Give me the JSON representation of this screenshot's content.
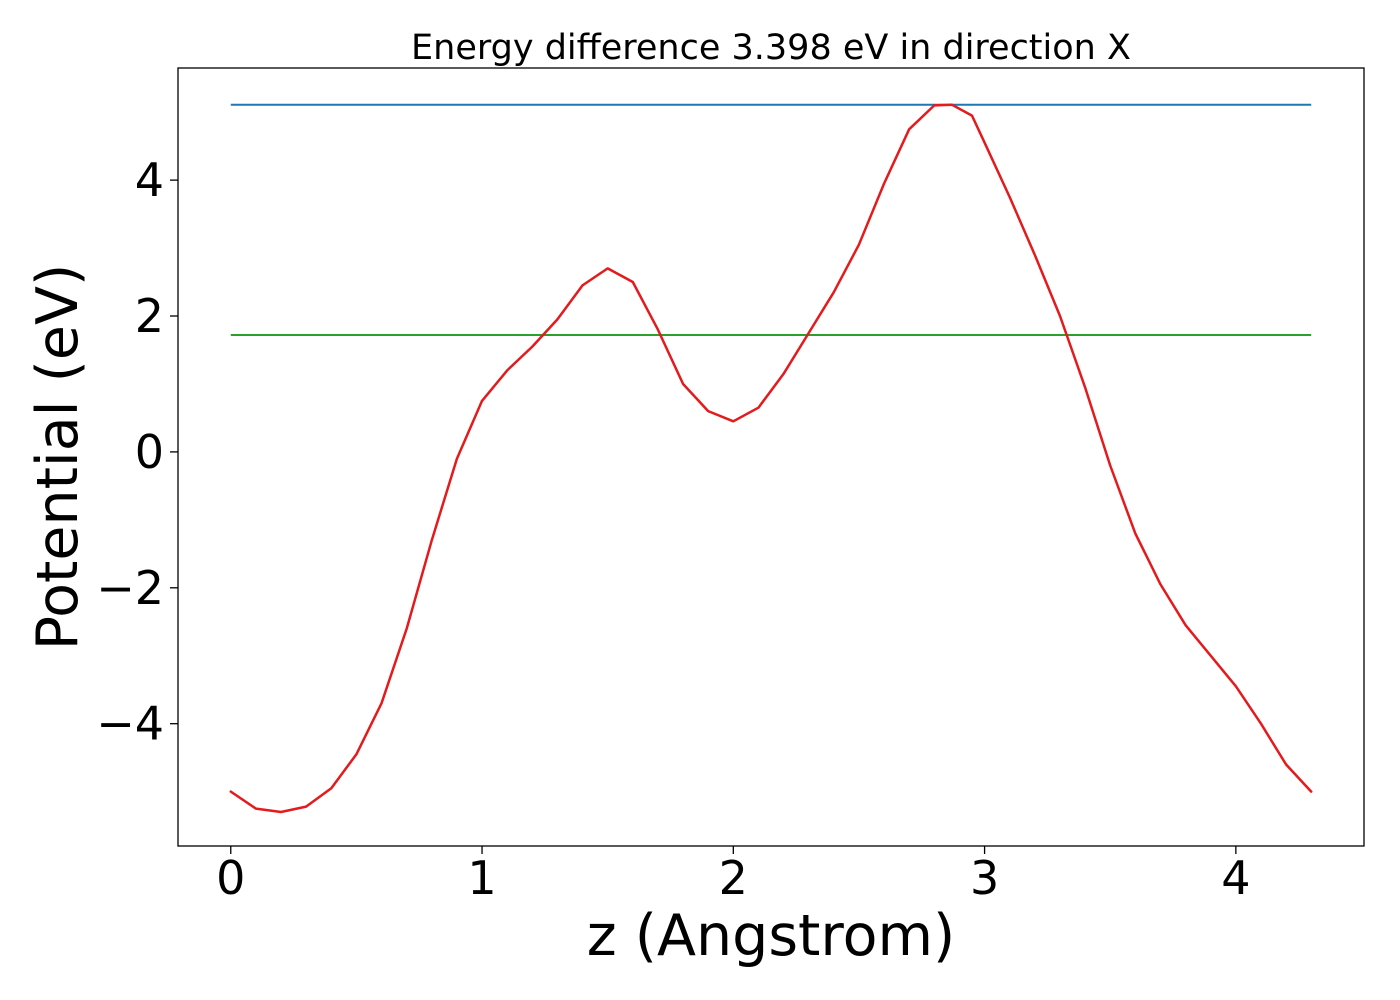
{
  "chart_data": {
    "type": "line",
    "title": "Energy difference 3.398 eV in direction X",
    "xlabel": "z (Angstrom)",
    "ylabel": "Potential (eV)",
    "xlim": [
      -0.21,
      4.51
    ],
    "ylim": [
      -5.8,
      5.65
    ],
    "xticks": [
      {
        "value": 0,
        "label": "0"
      },
      {
        "value": 1,
        "label": "1"
      },
      {
        "value": 2,
        "label": "2"
      },
      {
        "value": 3,
        "label": "3"
      },
      {
        "value": 4,
        "label": "4"
      }
    ],
    "yticks": [
      {
        "value": -4,
        "label": "−4"
      },
      {
        "value": -2,
        "label": "−2"
      },
      {
        "value": 0,
        "label": "0"
      },
      {
        "value": 2,
        "label": "2"
      },
      {
        "value": 4,
        "label": "4"
      }
    ],
    "grid": false,
    "legend": "none",
    "hlines": [
      {
        "y": 5.11,
        "x_range": [
          0,
          4.3
        ],
        "color": "#1f77b4"
      },
      {
        "y": 1.72,
        "x_range": [
          0,
          4.3
        ],
        "color": "#2ca02c"
      }
    ],
    "series": [
      {
        "color": "#e41a1c",
        "x": [
          0,
          0.1,
          0.2,
          0.3,
          0.4,
          0.5,
          0.6,
          0.7,
          0.8,
          0.9,
          1.0,
          1.1,
          1.2,
          1.3,
          1.4,
          1.5,
          1.6,
          1.7,
          1.8,
          1.9,
          2.0,
          2.1,
          2.2,
          2.3,
          2.4,
          2.5,
          2.6,
          2.7,
          2.8,
          2.87,
          2.95,
          3.0,
          3.1,
          3.2,
          3.3,
          3.4,
          3.5,
          3.6,
          3.7,
          3.8,
          3.9,
          4.0,
          4.1,
          4.2,
          4.3
        ],
        "y": [
          -5.0,
          -5.25,
          -5.3,
          -5.22,
          -4.95,
          -4.45,
          -3.7,
          -2.6,
          -1.3,
          -0.1,
          0.75,
          1.2,
          1.55,
          1.95,
          2.45,
          2.7,
          2.5,
          1.8,
          1.0,
          0.6,
          0.45,
          0.65,
          1.15,
          1.75,
          2.35,
          3.05,
          3.95,
          4.75,
          5.1,
          5.11,
          4.95,
          4.55,
          3.75,
          2.9,
          2.0,
          0.95,
          -0.2,
          -1.2,
          -1.95,
          -2.55,
          -3.0,
          -3.45,
          -4.0,
          -4.6,
          -5.0
        ]
      }
    ]
  }
}
